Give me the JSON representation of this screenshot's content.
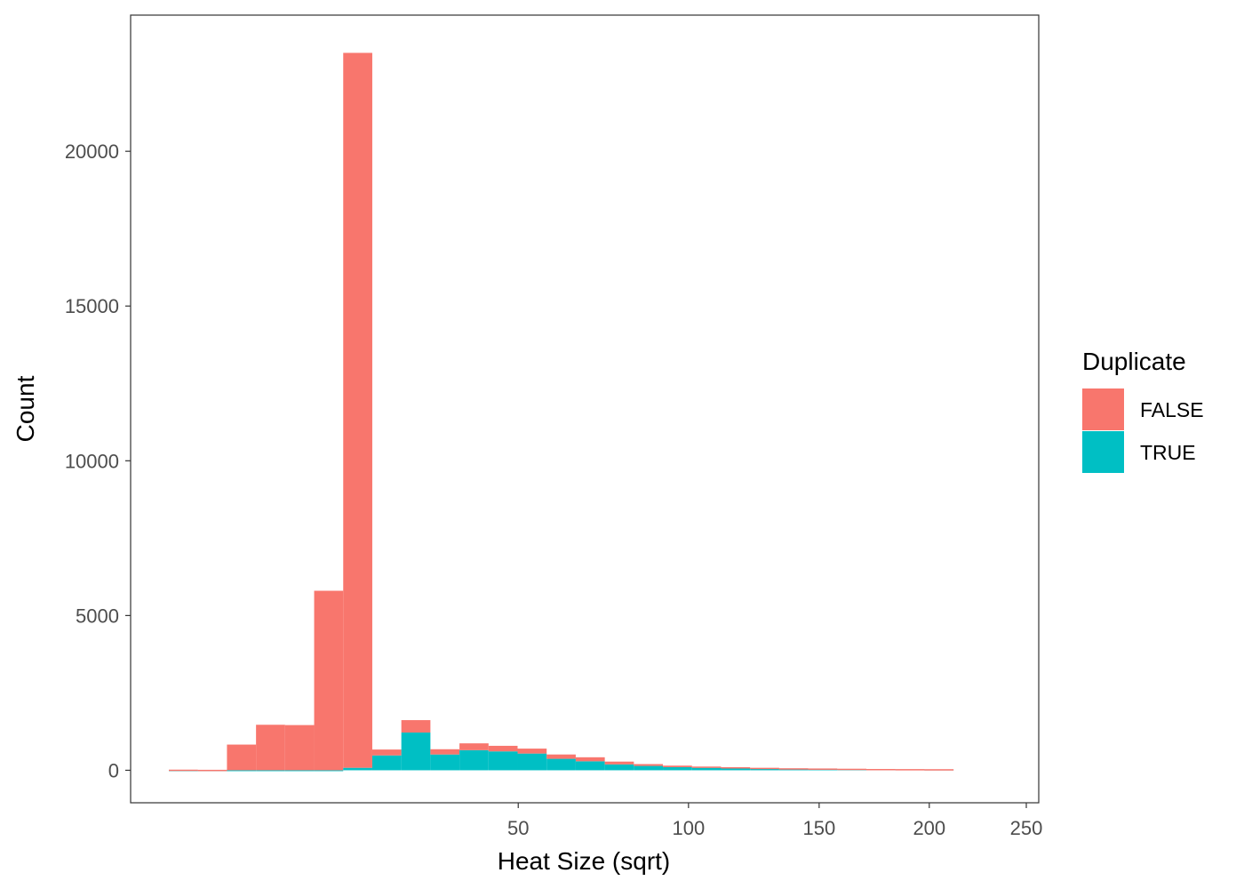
{
  "chart_data": {
    "type": "bar",
    "stacked": true,
    "xlabel": "Heat Size (sqrt)",
    "ylabel": "Count",
    "x_scale": "sqrt",
    "x_ticks": [
      50,
      100,
      150,
      200,
      250
    ],
    "x_range": [
      0,
      250
    ],
    "y_ticks": [
      0,
      5000,
      10000,
      15000,
      20000
    ],
    "ylim": [
      -1050,
      24400
    ],
    "grid": false,
    "legend": {
      "title": "Duplicate",
      "position": "right",
      "entries": [
        "FALSE",
        "TRUE"
      ]
    },
    "colors": {
      "FALSE": "#F8766D",
      "TRUE": "#00BFC4"
    },
    "bins_sqrt": [
      {
        "x0": 1.06,
        "x1": 1.56,
        "false": 20,
        "true": 0
      },
      {
        "x0": 1.56,
        "x1": 2.06,
        "false": 15,
        "true": 0
      },
      {
        "x0": 2.06,
        "x1": 2.56,
        "false": 830,
        "true": 0
      },
      {
        "x0": 2.56,
        "x1": 3.06,
        "false": 1470,
        "true": 0
      },
      {
        "x0": 3.06,
        "x1": 3.56,
        "false": 1460,
        "true": 0
      },
      {
        "x0": 3.56,
        "x1": 4.06,
        "false": 5800,
        "true": 0
      },
      {
        "x0": 4.06,
        "x1": 4.56,
        "false": 23100,
        "true": 80
      },
      {
        "x0": 4.56,
        "x1": 5.06,
        "false": 190,
        "true": 480
      },
      {
        "x0": 5.06,
        "x1": 5.56,
        "false": 400,
        "true": 1220
      },
      {
        "x0": 5.56,
        "x1": 6.06,
        "false": 170,
        "true": 510
      },
      {
        "x0": 6.06,
        "x1": 6.56,
        "false": 220,
        "true": 650
      },
      {
        "x0": 6.56,
        "x1": 7.06,
        "false": 180,
        "true": 610
      },
      {
        "x0": 7.06,
        "x1": 7.56,
        "false": 160,
        "true": 540
      },
      {
        "x0": 7.56,
        "x1": 8.06,
        "false": 140,
        "true": 370
      },
      {
        "x0": 8.06,
        "x1": 8.56,
        "false": 130,
        "true": 290
      },
      {
        "x0": 8.56,
        "x1": 9.06,
        "false": 90,
        "true": 190
      },
      {
        "x0": 9.06,
        "x1": 9.56,
        "false": 60,
        "true": 140
      },
      {
        "x0": 9.56,
        "x1": 10.06,
        "false": 50,
        "true": 100
      },
      {
        "x0": 10.06,
        "x1": 10.56,
        "false": 40,
        "true": 80
      },
      {
        "x0": 10.56,
        "x1": 11.06,
        "false": 30,
        "true": 70
      },
      {
        "x0": 11.06,
        "x1": 11.56,
        "false": 25,
        "true": 55
      },
      {
        "x0": 11.56,
        "x1": 12.06,
        "false": 20,
        "true": 45
      },
      {
        "x0": 12.06,
        "x1": 12.56,
        "false": 18,
        "true": 40
      },
      {
        "x0": 12.56,
        "x1": 13.06,
        "false": 15,
        "true": 35
      },
      {
        "x0": 13.06,
        "x1": 13.56,
        "false": 12,
        "true": 30
      },
      {
        "x0": 13.56,
        "x1": 14.06,
        "false": 10,
        "true": 28
      },
      {
        "x0": 14.06,
        "x1": 14.56,
        "false": 10,
        "true": 25
      }
    ]
  }
}
